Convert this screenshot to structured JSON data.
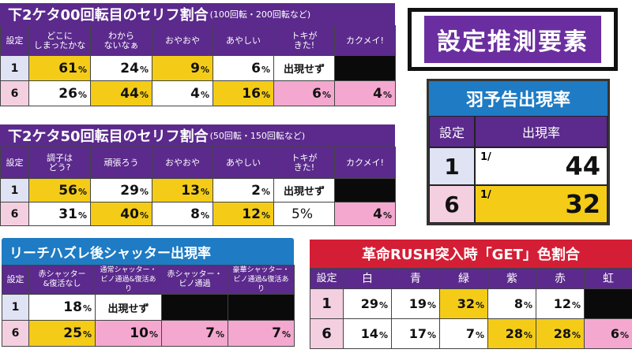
{
  "colors": {
    "purple": "#5b2a8c",
    "blue": "#1e7bc4",
    "red": "#d41e35",
    "yellow": "#f4cc18",
    "pink": "#f4a8cf"
  },
  "panelA": {
    "title": "下2ケタ00回転目のセリフ割合",
    "subtitle": "(100回転・200回転など)",
    "header": [
      "設定",
      "どこに\nしまったかな",
      "わから\nないなぁ",
      "おやおや",
      "あやしい",
      "トキが\nきた!",
      "カクメイ!"
    ],
    "rows": [
      {
        "label": "1",
        "cells": [
          [
            "61",
            "%"
          ],
          [
            "24",
            "%"
          ],
          [
            "9",
            "%"
          ],
          [
            "6",
            "%"
          ],
          [
            "出現せず",
            ""
          ],
          [
            "",
            ""
          ]
        ]
      },
      {
        "label": "6",
        "cells": [
          [
            "26",
            "%"
          ],
          [
            "44",
            "%"
          ],
          [
            "4",
            "%"
          ],
          [
            "16",
            "%"
          ],
          [
            "6",
            "%"
          ],
          [
            "4",
            "%"
          ]
        ]
      }
    ]
  },
  "panelB": {
    "title": "下2ケタ50回転目のセリフ割合",
    "subtitle": "(50回転・150回転など)",
    "header": [
      "設定",
      "調子は\nどう?",
      "頑張ろう",
      "おやおや",
      "あやしい",
      "トキが\nきた!",
      "カクメイ!"
    ],
    "rows": [
      {
        "label": "1",
        "cells": [
          [
            "56",
            "%"
          ],
          [
            "29",
            "%"
          ],
          [
            "13",
            "%"
          ],
          [
            "2",
            "%"
          ],
          [
            "出現せず",
            ""
          ],
          [
            "",
            ""
          ]
        ]
      },
      {
        "label": "6",
        "cells": [
          [
            "31",
            "%"
          ],
          [
            "40",
            "%"
          ],
          [
            "8",
            "%"
          ],
          [
            "12",
            "%"
          ],
          [
            "5%",
            ""
          ],
          [
            "4",
            "%"
          ]
        ]
      }
    ]
  },
  "panelC": {
    "title": "リーチハズレ後シャッター出現率",
    "header": [
      "設定",
      "赤シャッター\n&復活なし",
      "通常シャッター・\nビノ通過&復活あり",
      "赤シャッター・\nビノ通過",
      "豪華シャッター・\nビノ通過&復活あり"
    ],
    "rows": [
      {
        "label": "1",
        "cells": [
          [
            "18",
            "%"
          ],
          [
            "出現せず",
            ""
          ],
          [
            "",
            ""
          ],
          [
            "",
            ""
          ]
        ]
      },
      {
        "label": "6",
        "cells": [
          [
            "25",
            "%"
          ],
          [
            "10",
            "%"
          ],
          [
            "7",
            "%"
          ],
          [
            "7",
            "%"
          ]
        ]
      }
    ]
  },
  "panelD": {
    "title": "革命RUSH突入時「GET」色割合",
    "header": [
      "設定",
      "白",
      "青",
      "緑",
      "紫",
      "赤",
      "虹"
    ],
    "rows": [
      {
        "label": "1",
        "cells": [
          [
            "29",
            "%"
          ],
          [
            "19",
            "%"
          ],
          [
            "32",
            "%"
          ],
          [
            "8",
            "%"
          ],
          [
            "12",
            "%"
          ],
          [
            "",
            ""
          ]
        ]
      },
      {
        "label": "6",
        "cells": [
          [
            "14",
            "%"
          ],
          [
            "17",
            "%"
          ],
          [
            "7",
            "%"
          ],
          [
            "28",
            "%"
          ],
          [
            "28",
            "%"
          ],
          [
            "6",
            "%"
          ]
        ]
      }
    ]
  },
  "tag": {
    "label": "設定推測要素"
  },
  "wings": {
    "title": "羽予告出現率",
    "header": [
      "設定",
      "出現率"
    ],
    "rows": [
      {
        "label": "1",
        "frac": "1/",
        "value": "44"
      },
      {
        "label": "6",
        "frac": "1/",
        "value": "32"
      }
    ]
  }
}
